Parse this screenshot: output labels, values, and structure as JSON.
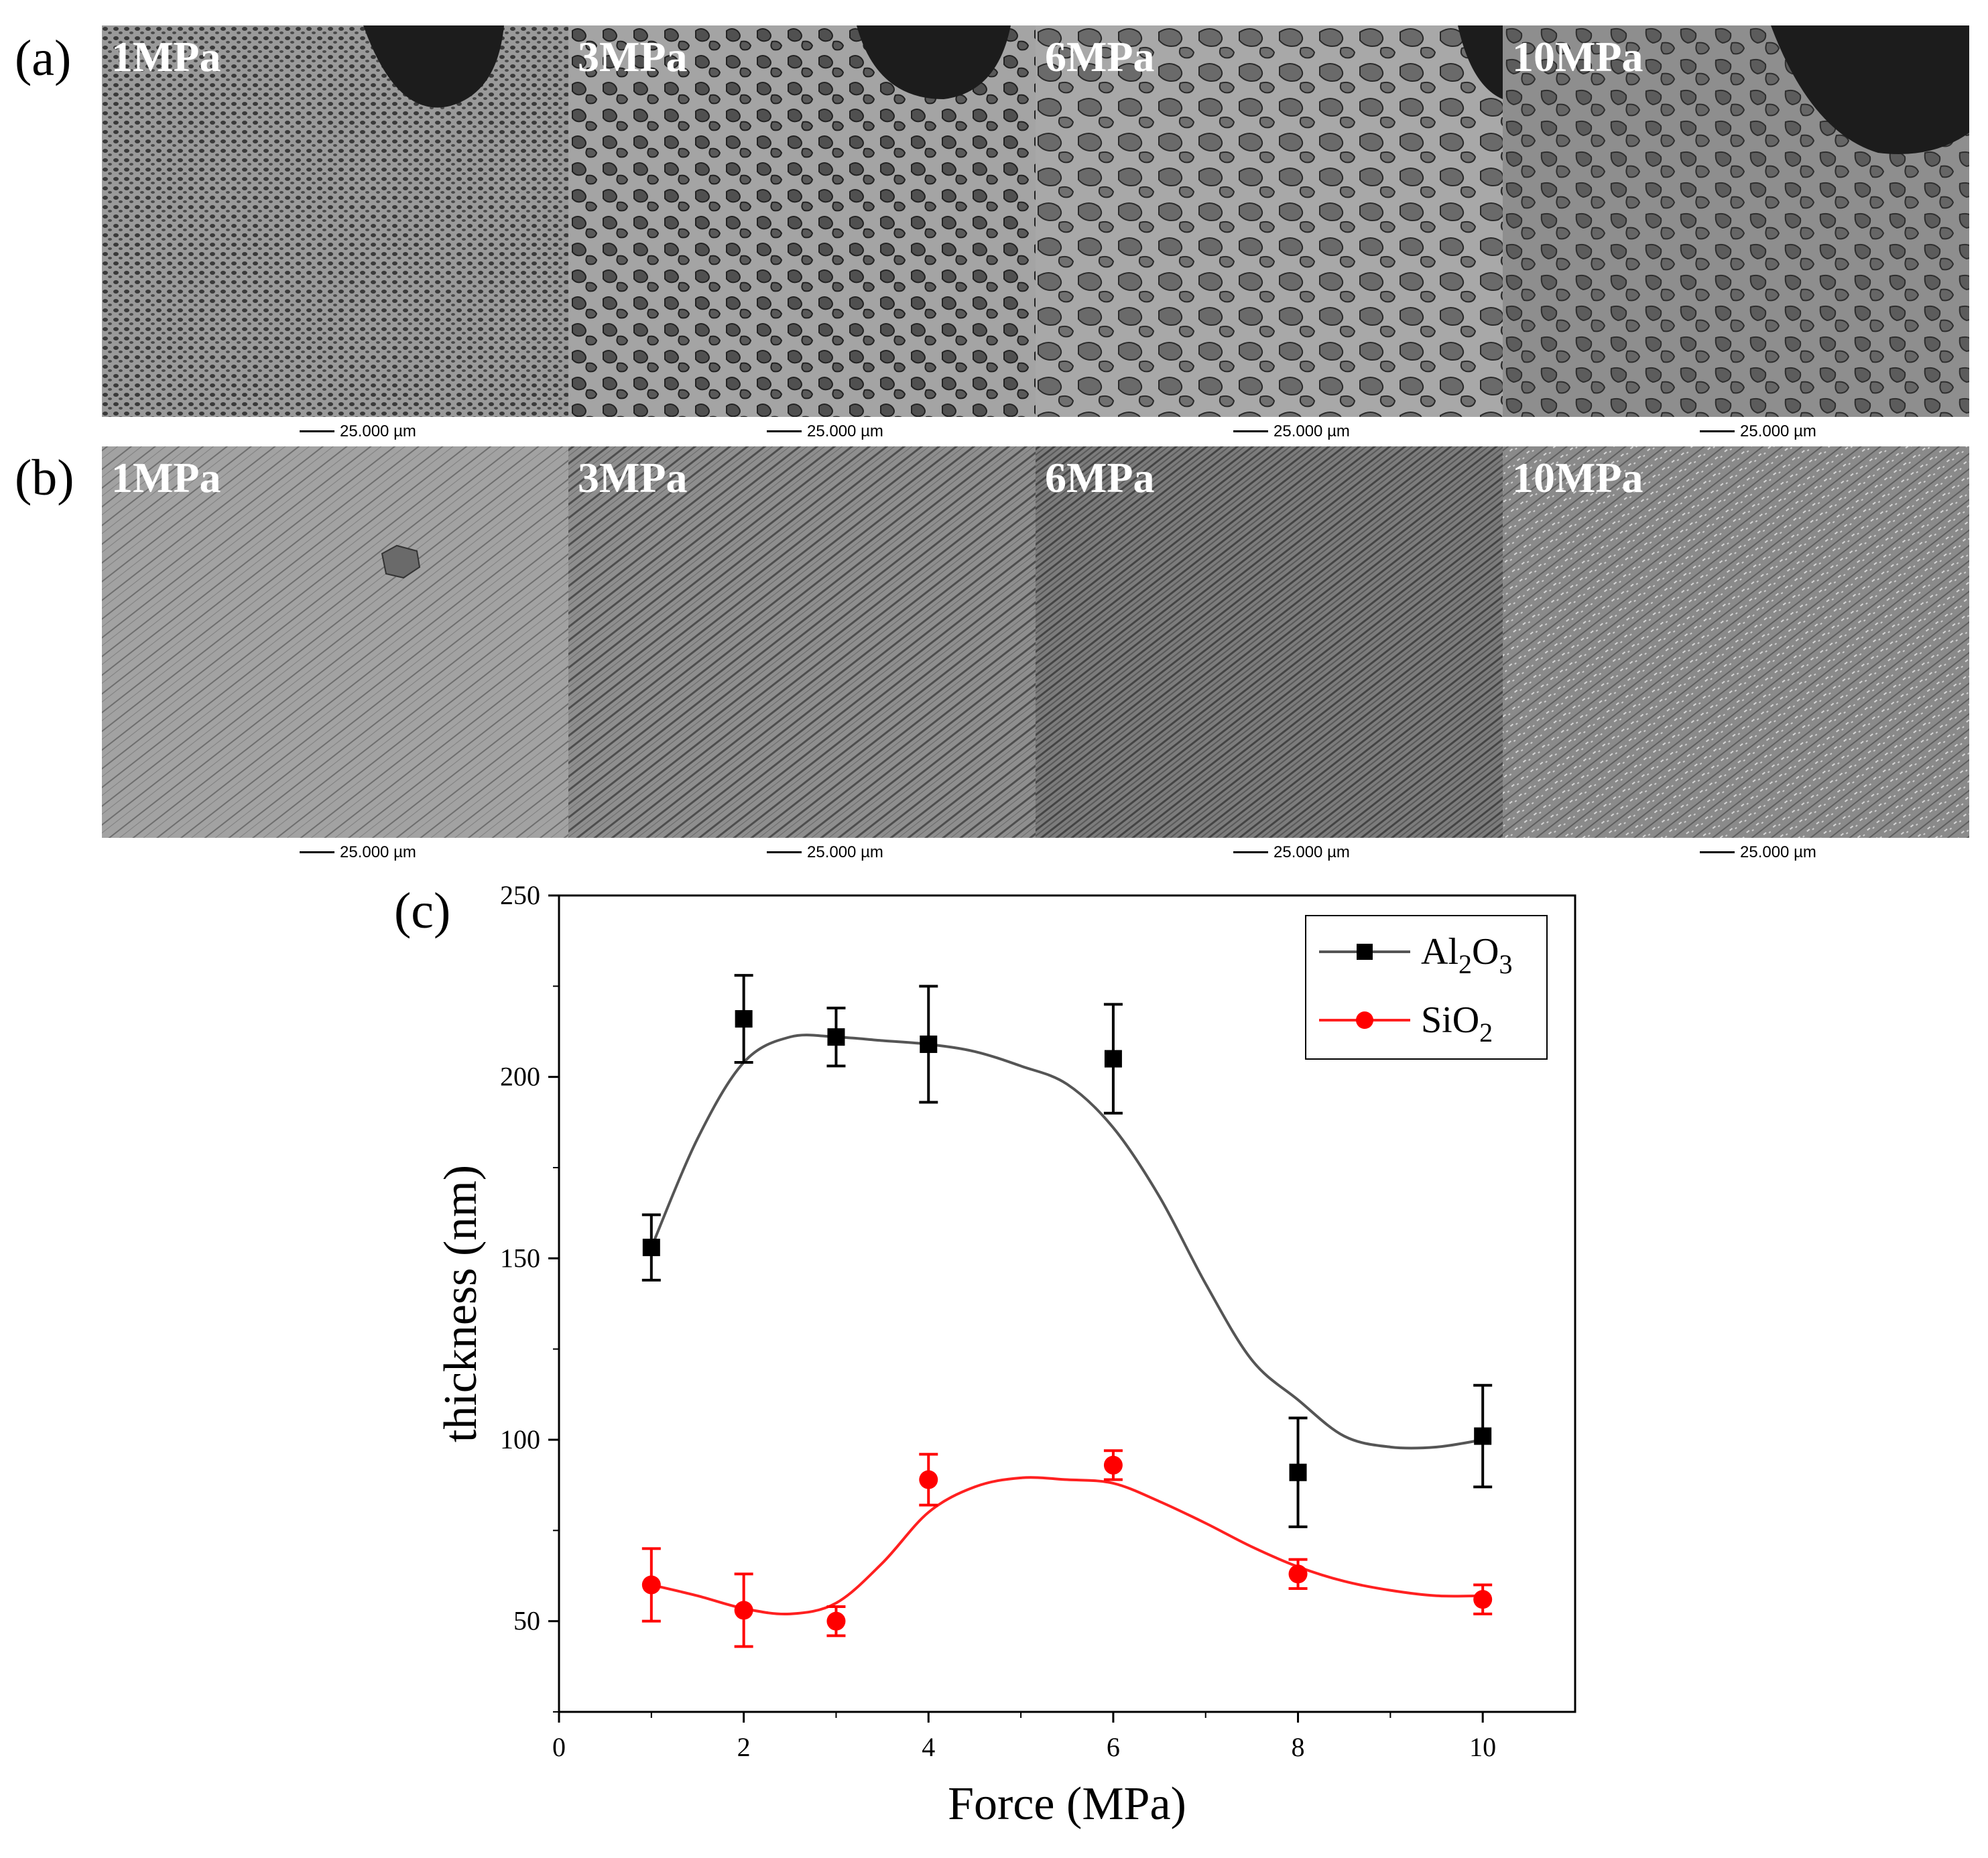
{
  "panels": {
    "a": {
      "label": "(a)",
      "images": [
        {
          "pressure": "1MPa",
          "scale": "25.000 µm"
        },
        {
          "pressure": "3MPa",
          "scale": "25.000 µm"
        },
        {
          "pressure": "6MPa",
          "scale": "25.000 µm"
        },
        {
          "pressure": "10MPa",
          "scale": "25.000 µm"
        }
      ]
    },
    "b": {
      "label": "(b)",
      "images": [
        {
          "pressure": "1MPa",
          "scale": "25.000 µm"
        },
        {
          "pressure": "3MPa",
          "scale": "25.000 µm"
        },
        {
          "pressure": "6MPa",
          "scale": "25.000 µm"
        },
        {
          "pressure": "10MPa",
          "scale": "25.000 µm"
        }
      ]
    },
    "c": {
      "label": "(c)"
    }
  },
  "chart_data": {
    "type": "line",
    "title": "",
    "xlabel": "Force (MPa)",
    "ylabel": "thickness (nm)",
    "xlim": [
      0,
      11
    ],
    "ylim": [
      25,
      250
    ],
    "xticks": [
      0,
      2,
      4,
      6,
      8,
      10
    ],
    "yticks": [
      50,
      100,
      150,
      200,
      250
    ],
    "legend_position": "top-right",
    "series": [
      {
        "name": "Al2O3",
        "color": "#000000",
        "line_color": "#555555",
        "marker": "square",
        "x": [
          1,
          2,
          3,
          4,
          6,
          8,
          10
        ],
        "values": [
          153,
          216,
          211,
          209,
          205,
          91,
          101
        ],
        "errors": [
          9,
          12,
          8,
          16,
          15,
          15,
          14
        ],
        "fit_curve": {
          "x": [
            1,
            1.5,
            2,
            2.5,
            3,
            3.5,
            4,
            4.5,
            5,
            5.5,
            6,
            6.5,
            7,
            7.5,
            8,
            8.5,
            9,
            9.5,
            10
          ],
          "y": [
            153,
            183,
            204,
            211,
            211,
            210,
            209,
            207,
            203,
            198,
            186,
            167,
            143,
            122,
            111,
            101,
            98,
            98,
            100
          ]
        }
      },
      {
        "name": "SiO2",
        "color": "#ff0000",
        "line_color": "#ff2020",
        "marker": "circle",
        "x": [
          1,
          2,
          3,
          4,
          6,
          8,
          10
        ],
        "values": [
          60,
          53,
          50,
          89,
          93,
          63,
          56
        ],
        "errors": [
          10,
          10,
          4,
          7,
          4,
          4,
          4
        ],
        "fit_curve": {
          "x": [
            1,
            1.5,
            2,
            2.5,
            3,
            3.5,
            4,
            4.5,
            5,
            5.5,
            6,
            6.5,
            7,
            7.5,
            8,
            8.5,
            9,
            9.5,
            10
          ],
          "y": [
            60,
            57,
            53.5,
            52,
            55,
            66,
            80,
            87,
            89.5,
            89,
            88,
            83,
            77,
            70.5,
            65,
            61,
            58.5,
            57,
            57
          ]
        }
      }
    ]
  },
  "legend": {
    "al2o3": {
      "main": "Al",
      "sub1": "2",
      "mid": "O",
      "sub2": "3"
    },
    "sio2": {
      "main": "SiO",
      "sub": "2"
    }
  }
}
